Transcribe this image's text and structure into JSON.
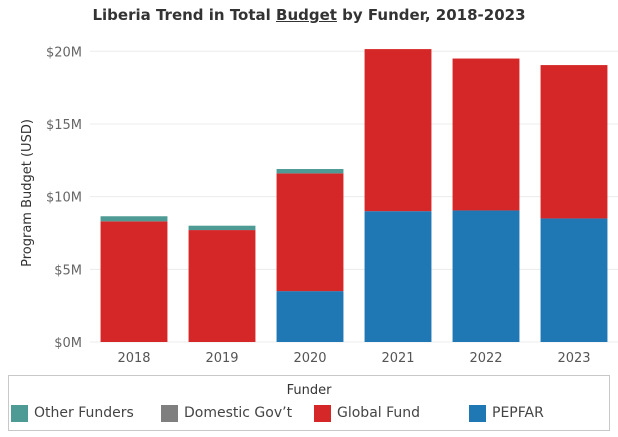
{
  "title_parts": {
    "pre": "Liberia Trend in Total ",
    "emph": "Budget",
    "post": " by Funder, 2018-2023"
  },
  "legend_title": "Funder",
  "chart_data": {
    "type": "bar",
    "stacked": true,
    "title": "Liberia Trend in Total Budget by Funder, 2018-2023",
    "xlabel": "",
    "ylabel": "Program Budget (USD)",
    "categories": [
      "2018",
      "2019",
      "2020",
      "2021",
      "2022",
      "2023"
    ],
    "ylim": [
      0,
      20500000
    ],
    "yticks": [
      0,
      5000000,
      10000000,
      15000000,
      20000000
    ],
    "ytick_labels": [
      "$0M",
      "$5M",
      "$10M",
      "$15M",
      "$20M"
    ],
    "grid": true,
    "legend_position": "bottom",
    "series": [
      {
        "name": "PEPFAR",
        "color": "#1f77b4",
        "values": [
          0,
          0,
          3500000,
          9000000,
          9050000,
          8500000
        ]
      },
      {
        "name": "Global Fund",
        "color": "#d62728",
        "values": [
          8300000,
          7700000,
          8100000,
          11150000,
          10450000,
          10550000
        ]
      },
      {
        "name": "Domestic Gov’t",
        "color": "#7f7f7f",
        "values": [
          0,
          0,
          0,
          0,
          0,
          0
        ]
      },
      {
        "name": "Other Funders",
        "color": "#4e9a94",
        "values": [
          350000,
          300000,
          300000,
          0,
          0,
          0
        ]
      }
    ],
    "legend_order": [
      "Other Funders",
      "Domestic Gov’t",
      "Global Fund",
      "PEPFAR"
    ]
  }
}
